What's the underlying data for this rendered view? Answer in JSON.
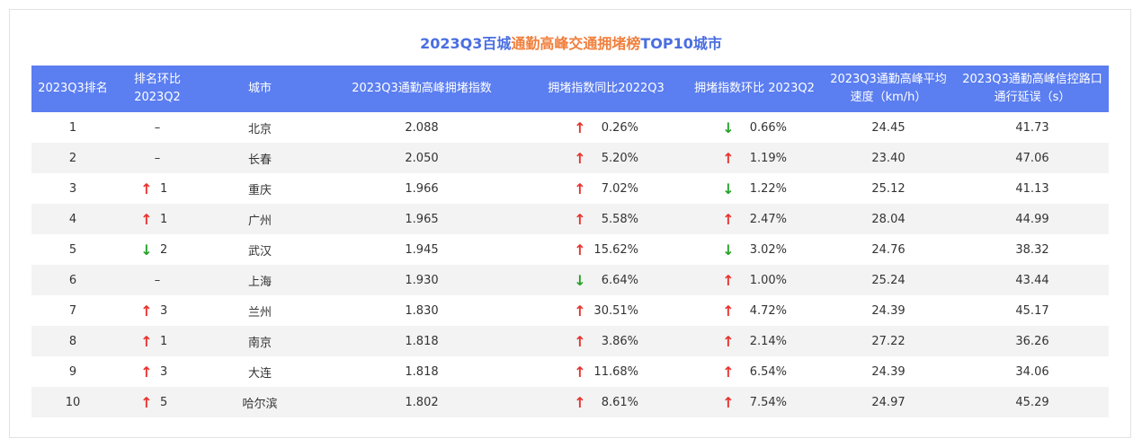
{
  "title": {
    "part1": "2023Q3百城",
    "part2": "通勤高峰交通拥堵榜",
    "part3": "TOP10城市"
  },
  "headers": [
    "2023Q3排名",
    "排名环比 2023Q2",
    "城市",
    "2023Q3通勤高峰拥堵指数",
    "拥堵指数同比2022Q3",
    "拥堵指数环比 2023Q2",
    "2023Q3通勤高峰平均 速度（km/h）",
    "2023Q3通勤高峰信控路口 通行延误（s）"
  ],
  "colors": {
    "header_bg": "#5b7ef0",
    "up": "#e8332f",
    "down": "#27a12a",
    "title_blue": "#4a6ee0",
    "title_orange": "#f07f3c"
  },
  "rows": [
    {
      "rank": "1",
      "rank_change_dir": "none",
      "rank_change": "–",
      "city": "北京",
      "index": "2.088",
      "yoy_dir": "up",
      "yoy": "0.26%",
      "qoq_dir": "down",
      "qoq": "0.66%",
      "speed": "24.45",
      "delay": "41.73"
    },
    {
      "rank": "2",
      "rank_change_dir": "none",
      "rank_change": "–",
      "city": "长春",
      "index": "2.050",
      "yoy_dir": "up",
      "yoy": "5.20%",
      "qoq_dir": "up",
      "qoq": "1.19%",
      "speed": "23.40",
      "delay": "47.06"
    },
    {
      "rank": "3",
      "rank_change_dir": "up",
      "rank_change": "1",
      "city": "重庆",
      "index": "1.966",
      "yoy_dir": "up",
      "yoy": "7.02%",
      "qoq_dir": "down",
      "qoq": "1.22%",
      "speed": "25.12",
      "delay": "41.13"
    },
    {
      "rank": "4",
      "rank_change_dir": "up",
      "rank_change": "1",
      "city": "广州",
      "index": "1.965",
      "yoy_dir": "up",
      "yoy": "5.58%",
      "qoq_dir": "up",
      "qoq": "2.47%",
      "speed": "28.04",
      "delay": "44.99"
    },
    {
      "rank": "5",
      "rank_change_dir": "down",
      "rank_change": "2",
      "city": "武汉",
      "index": "1.945",
      "yoy_dir": "up",
      "yoy": "15.62%",
      "qoq_dir": "down",
      "qoq": "3.02%",
      "speed": "24.76",
      "delay": "38.32"
    },
    {
      "rank": "6",
      "rank_change_dir": "none",
      "rank_change": "–",
      "city": "上海",
      "index": "1.930",
      "yoy_dir": "down",
      "yoy": "6.64%",
      "qoq_dir": "up",
      "qoq": "1.00%",
      "speed": "25.24",
      "delay": "43.44"
    },
    {
      "rank": "7",
      "rank_change_dir": "up",
      "rank_change": "3",
      "city": "兰州",
      "index": "1.830",
      "yoy_dir": "up",
      "yoy": "30.51%",
      "qoq_dir": "up",
      "qoq": "4.72%",
      "speed": "24.39",
      "delay": "45.17"
    },
    {
      "rank": "8",
      "rank_change_dir": "up",
      "rank_change": "1",
      "city": "南京",
      "index": "1.818",
      "yoy_dir": "up",
      "yoy": "3.86%",
      "qoq_dir": "up",
      "qoq": "2.14%",
      "speed": "27.22",
      "delay": "36.26"
    },
    {
      "rank": "9",
      "rank_change_dir": "up",
      "rank_change": "3",
      "city": "大连",
      "index": "1.818",
      "yoy_dir": "up",
      "yoy": "11.68%",
      "qoq_dir": "up",
      "qoq": "6.54%",
      "speed": "24.39",
      "delay": "34.06"
    },
    {
      "rank": "10",
      "rank_change_dir": "up",
      "rank_change": "5",
      "city": "哈尔滨",
      "index": "1.802",
      "yoy_dir": "up",
      "yoy": "8.61%",
      "qoq_dir": "up",
      "qoq": "7.54%",
      "speed": "24.97",
      "delay": "45.29"
    }
  ]
}
